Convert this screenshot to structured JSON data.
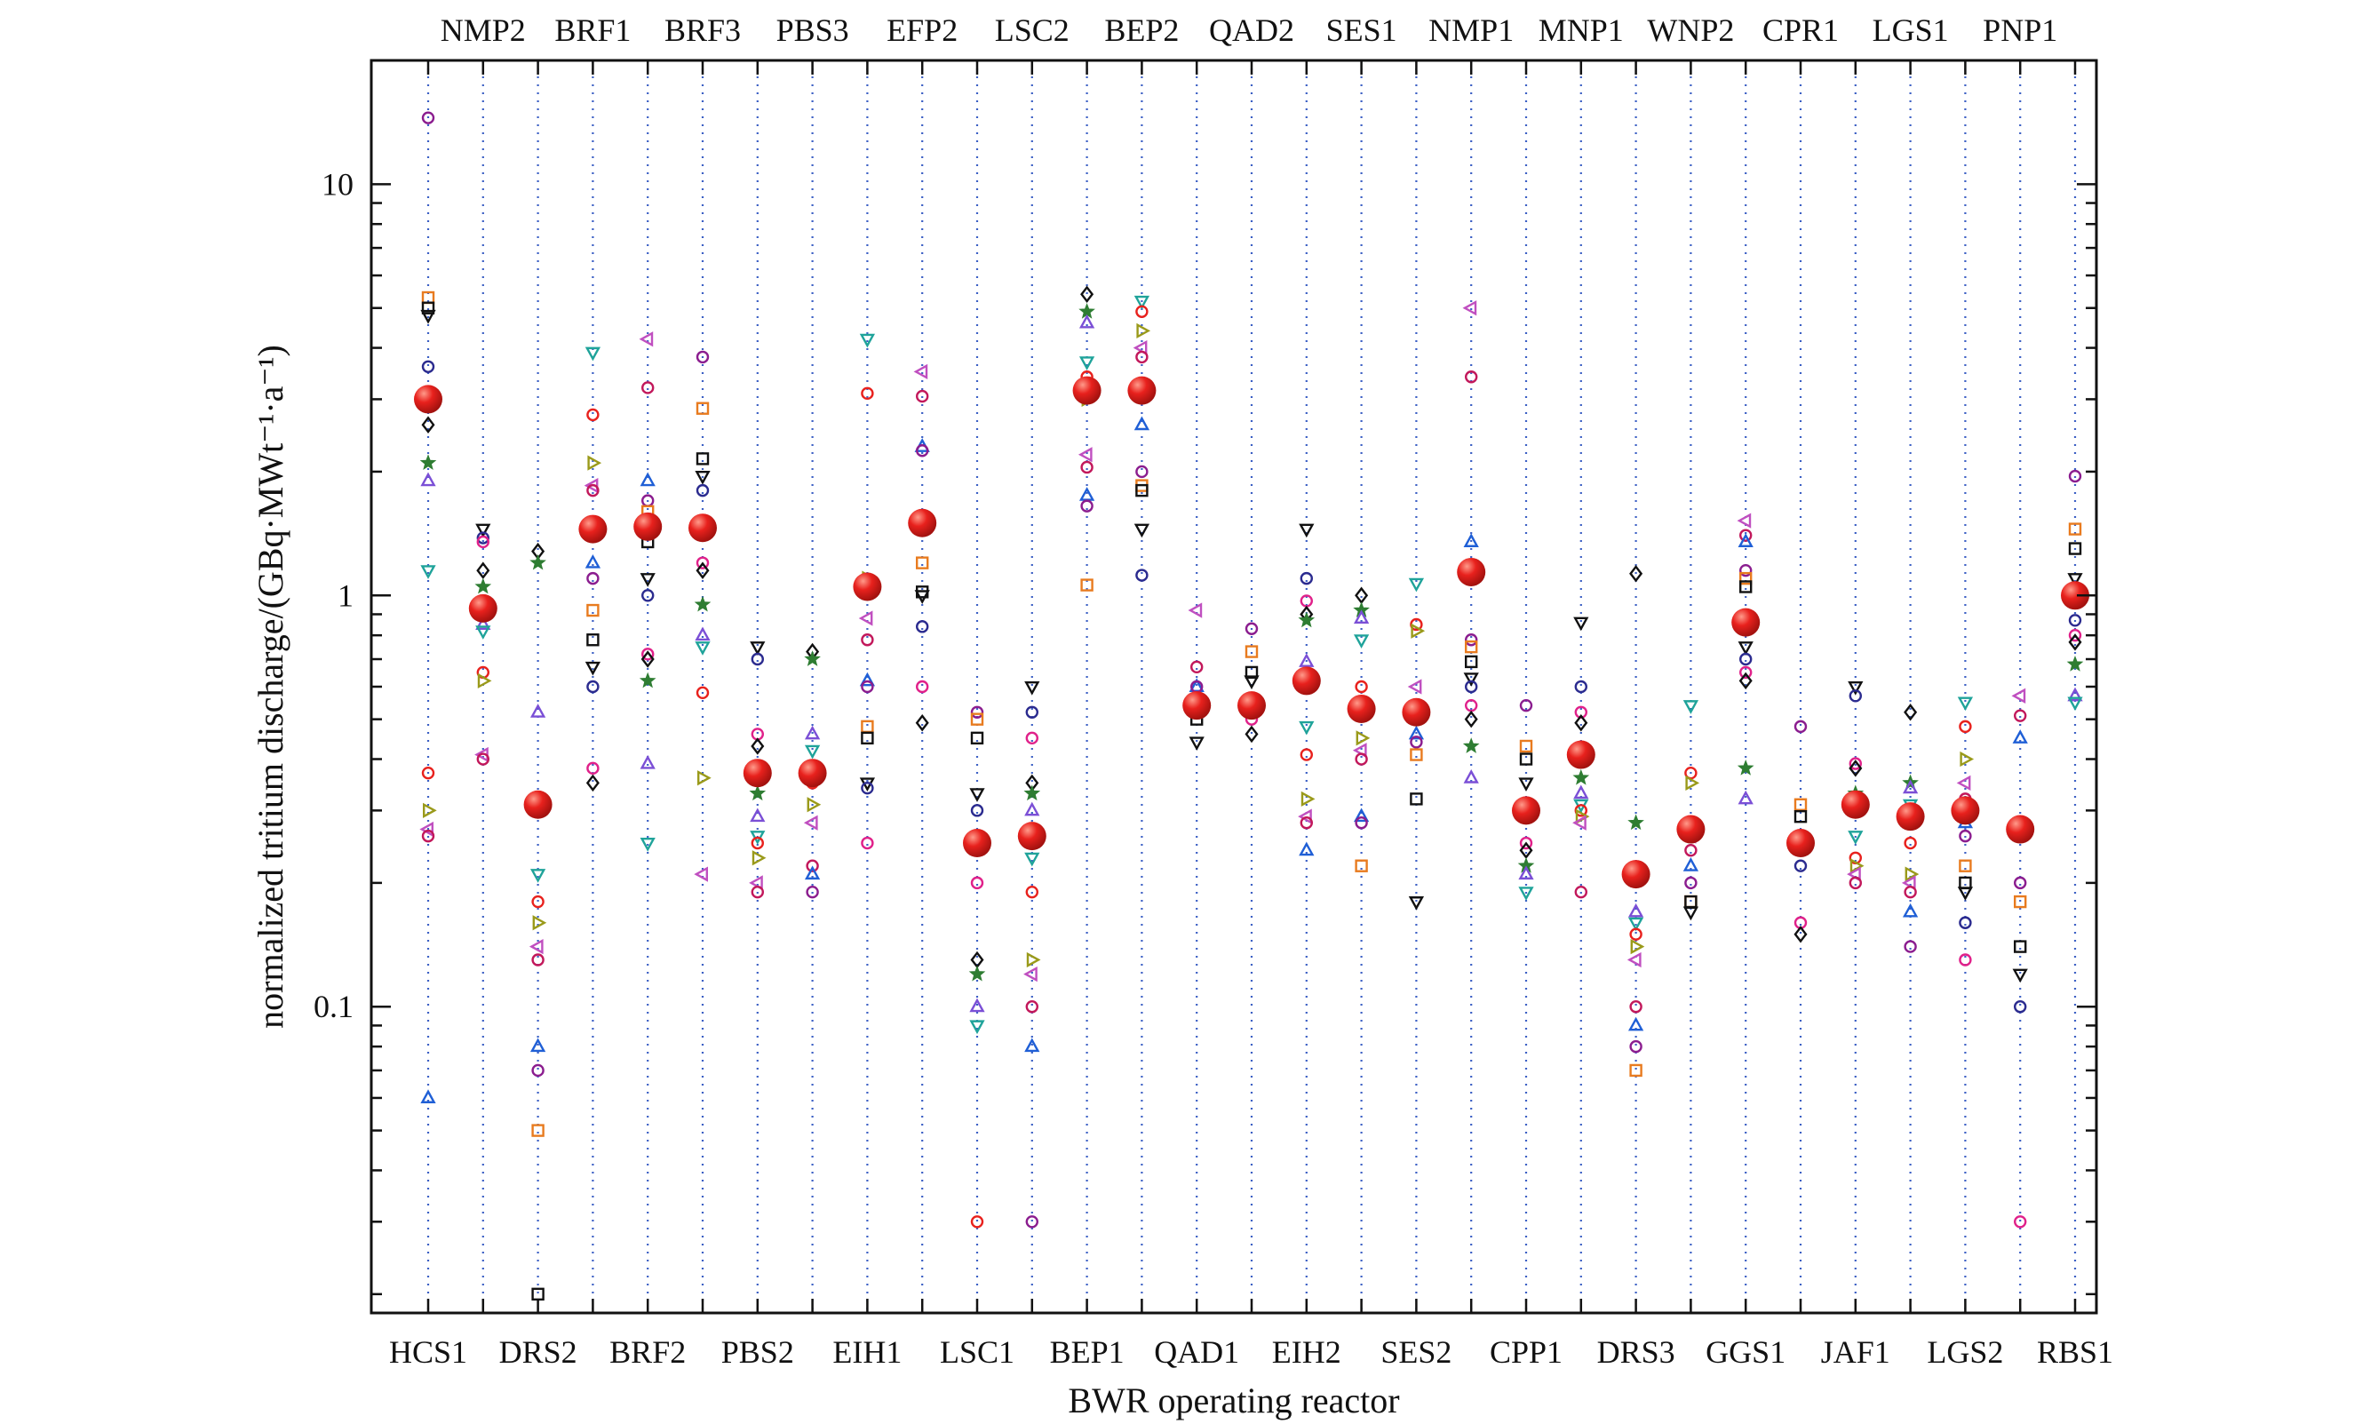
{
  "chart_data": {
    "type": "scatter",
    "xlabel": "BWR operating reactor",
    "ylabel": "normalized tritium discharge/(GBq·MWt⁻¹·a⁻¹)",
    "y_scale": "log",
    "ylim": [
      0.018,
      20
    ],
    "y_ticks": [
      {
        "value": 0.1,
        "label": "0.1"
      },
      {
        "value": 1,
        "label": "1"
      },
      {
        "value": 10,
        "label": "10"
      }
    ],
    "grid": "dotted vertical lines at each reactor",
    "categories": [
      "HCS1",
      "NMP2",
      "DRS2",
      "BRF1",
      "BRF2",
      "BRF3",
      "PBS2",
      "PBS3",
      "EIH1",
      "EFP2",
      "LSC1",
      "LSC2",
      "BEP1",
      "BEP2",
      "QAD1",
      "QAD2",
      "EIH2",
      "SES1",
      "SES2",
      "NMP1",
      "CPP1",
      "MNP1",
      "DRS3",
      "WNP2",
      "GGS1",
      "CPR1",
      "JAF1",
      "LGS1",
      "LGS2",
      "PNP1",
      "RBS1"
    ],
    "bottom_labels": [
      "HCS1",
      "DRS2",
      "BRF2",
      "PBS2",
      "EIH1",
      "LSC1",
      "BEP1",
      "QAD1",
      "EIH2",
      "SES2",
      "CPP1",
      "DRS3",
      "GGS1",
      "JAF1",
      "LGS2",
      "RBS1"
    ],
    "top_labels": [
      "NMP2",
      "BRF1",
      "BRF3",
      "PBS3",
      "EFP2",
      "LSC2",
      "BEP2",
      "QAD2",
      "SES1",
      "NMP1",
      "MNP1",
      "WNP2",
      "CPR1",
      "LGS1",
      "PNP1"
    ],
    "mean_marker_color": "#e8211d",
    "mean_values": [
      3.0,
      0.93,
      0.31,
      1.45,
      1.47,
      1.46,
      0.37,
      0.37,
      1.05,
      1.5,
      0.25,
      0.26,
      3.15,
      3.15,
      0.54,
      0.54,
      0.62,
      0.53,
      0.52,
      1.14,
      0.3,
      0.41,
      0.21,
      0.27,
      0.86,
      0.25,
      0.31,
      0.29,
      0.3,
      0.27,
      1.0
    ],
    "annual_values": [
      [
        14.5,
        5.3,
        5.0,
        4.8,
        3.6,
        3.0,
        2.6,
        2.1,
        1.9,
        1.15,
        0.37,
        0.3,
        0.27,
        0.26,
        0.06
      ],
      [
        1.45,
        1.38,
        1.35,
        1.15,
        1.05,
        0.85,
        0.82,
        0.65,
        0.62,
        0.41,
        0.4
      ],
      [
        1.28,
        1.2,
        0.52,
        0.21,
        0.18,
        0.16,
        0.14,
        0.13,
        0.08,
        0.07,
        0.05,
        0.02
      ],
      [
        3.9,
        2.75,
        2.1,
        1.85,
        1.8,
        1.2,
        1.1,
        0.92,
        0.78,
        0.67,
        0.6,
        0.38,
        0.35
      ],
      [
        4.2,
        3.2,
        1.9,
        1.7,
        1.6,
        1.35,
        1.1,
        1.0,
        0.72,
        0.7,
        0.62,
        0.39,
        0.25
      ],
      [
        3.8,
        2.85,
        2.15,
        1.95,
        1.8,
        1.2,
        1.15,
        0.95,
        0.8,
        0.75,
        0.58,
        0.36,
        0.21
      ],
      [
        0.75,
        0.7,
        0.46,
        0.43,
        0.33,
        0.29,
        0.26,
        0.25,
        0.23,
        0.2,
        0.19
      ],
      [
        0.73,
        0.7,
        0.46,
        0.42,
        0.35,
        0.31,
        0.28,
        0.22,
        0.21,
        0.19
      ],
      [
        4.2,
        3.1,
        1.1,
        0.88,
        0.78,
        0.62,
        0.6,
        0.48,
        0.45,
        0.35,
        0.34,
        0.25
      ],
      [
        3.5,
        3.05,
        2.3,
        2.25,
        1.2,
        1.02,
        1.0,
        0.84,
        0.6,
        0.49
      ],
      [
        0.52,
        0.5,
        0.45,
        0.33,
        0.3,
        0.2,
        0.13,
        0.12,
        0.1,
        0.09,
        0.03
      ],
      [
        0.6,
        0.52,
        0.45,
        0.35,
        0.33,
        0.3,
        0.23,
        0.19,
        0.13,
        0.12,
        0.1,
        0.08,
        0.03
      ],
      [
        5.4,
        4.9,
        4.6,
        3.7,
        3.4,
        3.0,
        2.2,
        2.05,
        1.75,
        1.65,
        1.06
      ],
      [
        5.2,
        4.9,
        4.4,
        4.0,
        3.8,
        2.6,
        2.0,
        1.85,
        1.8,
        1.45,
        1.12
      ],
      [
        0.92,
        0.67,
        0.6,
        0.6,
        0.55,
        0.5,
        0.44
      ],
      [
        0.83,
        0.73,
        0.65,
        0.62,
        0.55,
        0.5,
        0.46
      ],
      [
        1.45,
        1.1,
        0.97,
        0.9,
        0.87,
        0.69,
        0.48,
        0.41,
        0.32,
        0.29,
        0.28,
        0.24
      ],
      [
        1.0,
        0.92,
        0.88,
        0.78,
        0.6,
        0.45,
        0.42,
        0.4,
        0.29,
        0.28,
        0.22
      ],
      [
        1.07,
        0.85,
        0.82,
        0.6,
        0.5,
        0.46,
        0.44,
        0.41,
        0.32,
        0.18
      ],
      [
        5.0,
        3.4,
        1.35,
        0.78,
        0.75,
        0.69,
        0.63,
        0.6,
        0.54,
        0.5,
        0.43,
        0.36
      ],
      [
        0.54,
        0.43,
        0.4,
        0.35,
        0.3,
        0.25,
        0.24,
        0.22,
        0.21,
        0.19
      ],
      [
        0.86,
        0.6,
        0.52,
        0.49,
        0.36,
        0.33,
        0.31,
        0.3,
        0.29,
        0.28,
        0.19
      ],
      [
        1.13,
        0.28,
        0.17,
        0.16,
        0.15,
        0.14,
        0.13,
        0.1,
        0.09,
        0.08,
        0.07
      ],
      [
        0.54,
        0.37,
        0.35,
        0.26,
        0.24,
        0.22,
        0.2,
        0.18,
        0.18,
        0.17
      ],
      [
        1.52,
        1.4,
        1.35,
        1.15,
        1.1,
        1.05,
        0.75,
        0.7,
        0.65,
        0.62,
        0.38,
        0.32
      ],
      [
        0.48,
        0.31,
        0.29,
        0.25,
        0.22,
        0.16,
        0.15
      ],
      [
        0.6,
        0.57,
        0.39,
        0.38,
        0.33,
        0.3,
        0.26,
        0.23,
        0.22,
        0.21,
        0.2
      ],
      [
        0.52,
        0.35,
        0.34,
        0.31,
        0.25,
        0.21,
        0.2,
        0.19,
        0.17,
        0.14
      ],
      [
        0.55,
        0.48,
        0.4,
        0.35,
        0.32,
        0.28,
        0.26,
        0.22,
        0.2,
        0.19,
        0.16,
        0.13
      ],
      [
        0.57,
        0.51,
        0.45,
        0.2,
        0.18,
        0.14,
        0.12,
        0.1,
        0.03
      ],
      [
        1.95,
        1.45,
        1.3,
        1.1,
        0.87,
        0.8,
        0.77,
        0.68,
        0.57,
        0.55
      ]
    ],
    "marker_styles": [
      {
        "shape": "circle",
        "color": "#8b1d8f"
      },
      {
        "shape": "square",
        "color": "#e87b1f"
      },
      {
        "shape": "square",
        "color": "#111111"
      },
      {
        "shape": "triangle-down",
        "color": "#111111"
      },
      {
        "shape": "circle",
        "color": "#2b2b8f"
      },
      {
        "shape": "circle",
        "color": "#e0218a"
      },
      {
        "shape": "diamond",
        "color": "#111111"
      },
      {
        "shape": "star",
        "color": "#2e7d32"
      },
      {
        "shape": "triangle",
        "color": "#7b4fd6"
      },
      {
        "shape": "triangle-down",
        "color": "#1fa39a"
      },
      {
        "shape": "circle",
        "color": "#e8211d"
      },
      {
        "shape": "triangle-right",
        "color": "#9a9a1a"
      },
      {
        "shape": "triangle-left",
        "color": "#c04fc0"
      },
      {
        "shape": "circle",
        "color": "#c2185b"
      },
      {
        "shape": "triangle",
        "color": "#1f5fd6"
      }
    ]
  }
}
